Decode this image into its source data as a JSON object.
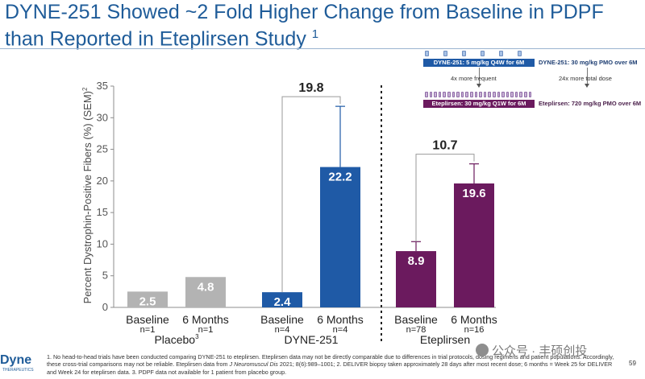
{
  "title": {
    "line1": "DYNE-251 Showed ~2 Fold Higher Change from Baseline in PDPF",
    "line2": "than Reported in Eteplirsen Study",
    "superscript": "1"
  },
  "chart_data": {
    "type": "bar",
    "ylabel": "Percent Dystrophin-Positive Fibers (%) (SEM)",
    "ylabel_superscript": "2",
    "ylim": [
      0,
      35
    ],
    "yticks": [
      "0",
      "5",
      "10",
      "15",
      "20",
      "25",
      "30",
      "35"
    ],
    "groups": [
      {
        "name": "Placebo",
        "name_superscript": "3",
        "color": "#b3b3b3",
        "bars": [
          {
            "category": "Baseline",
            "n": "n=1",
            "value": 2.5,
            "label": "2.5",
            "err_low": null,
            "err_high": null
          },
          {
            "category": "6 Months",
            "n": "n=1",
            "value": 4.8,
            "label": "4.8",
            "err_low": null,
            "err_high": null
          }
        ],
        "delta": null
      },
      {
        "name": "DYNE-251",
        "name_superscript": "",
        "color": "#1f5aa6",
        "bars": [
          {
            "category": "Baseline",
            "n": "n=4",
            "value": 2.4,
            "label": "2.4",
            "err_low": null,
            "err_high": null
          },
          {
            "category": "6 Months",
            "n": "n=4",
            "value": 22.2,
            "label": "22.2",
            "err_low": null,
            "err_high": 31.8
          }
        ],
        "delta": "19.8"
      },
      {
        "name": "Eteplirsen",
        "name_superscript": "",
        "color": "#6b1a5e",
        "bars": [
          {
            "category": "Baseline",
            "n": "n=78",
            "value": 8.9,
            "label": "8.9",
            "err_low": null,
            "err_high": 10.4
          },
          {
            "category": "6 Months",
            "n": "n=16",
            "value": 19.6,
            "label": "19.6",
            "err_low": null,
            "err_high": 22.7
          }
        ],
        "delta": "10.7"
      }
    ]
  },
  "inset": {
    "dyne_bar": "DYNE-251: 5 mg/kg Q4W for 6M",
    "dyne_side": "DYNE-251: 30 mg/kg PMO over 6M",
    "freq_note": "4x more frequent",
    "dose_note": "24x more total dose",
    "etep_bar": "Eteplirsen: 30 mg/kg Q1W for 6M",
    "etep_side": "Eteplirsen: 720 mg/kg PMO over 6M",
    "dyne_vial_count": 6,
    "etep_vial_count": 24
  },
  "logo": {
    "name": "Dyne",
    "sub": "THERAPEUTICS"
  },
  "footnote": {
    "part1": "1. No head-to-head trials have been conducted comparing DYNE-251 to eteplirsen. Eteplirsen data may not be directly comparable due to differences in trial protocols, dosing regimens and patient populations. Accordingly, these cross-trial comparisons may not be reliable. Eteplirsen data from ",
    "journal": "J Neuromuscul Dis",
    "part2": " 2021; 8(6):989–1001; 2. DELIVER biopsy taken approximately 28 days after most recent dose; 6 months = Week 25 for DELIVER and Week 24 for eteplirsen data. 3. PDPF data not available for 1 patient from placebo group."
  },
  "watermark": "公众号 · 丰硕创投",
  "page_number": "59"
}
